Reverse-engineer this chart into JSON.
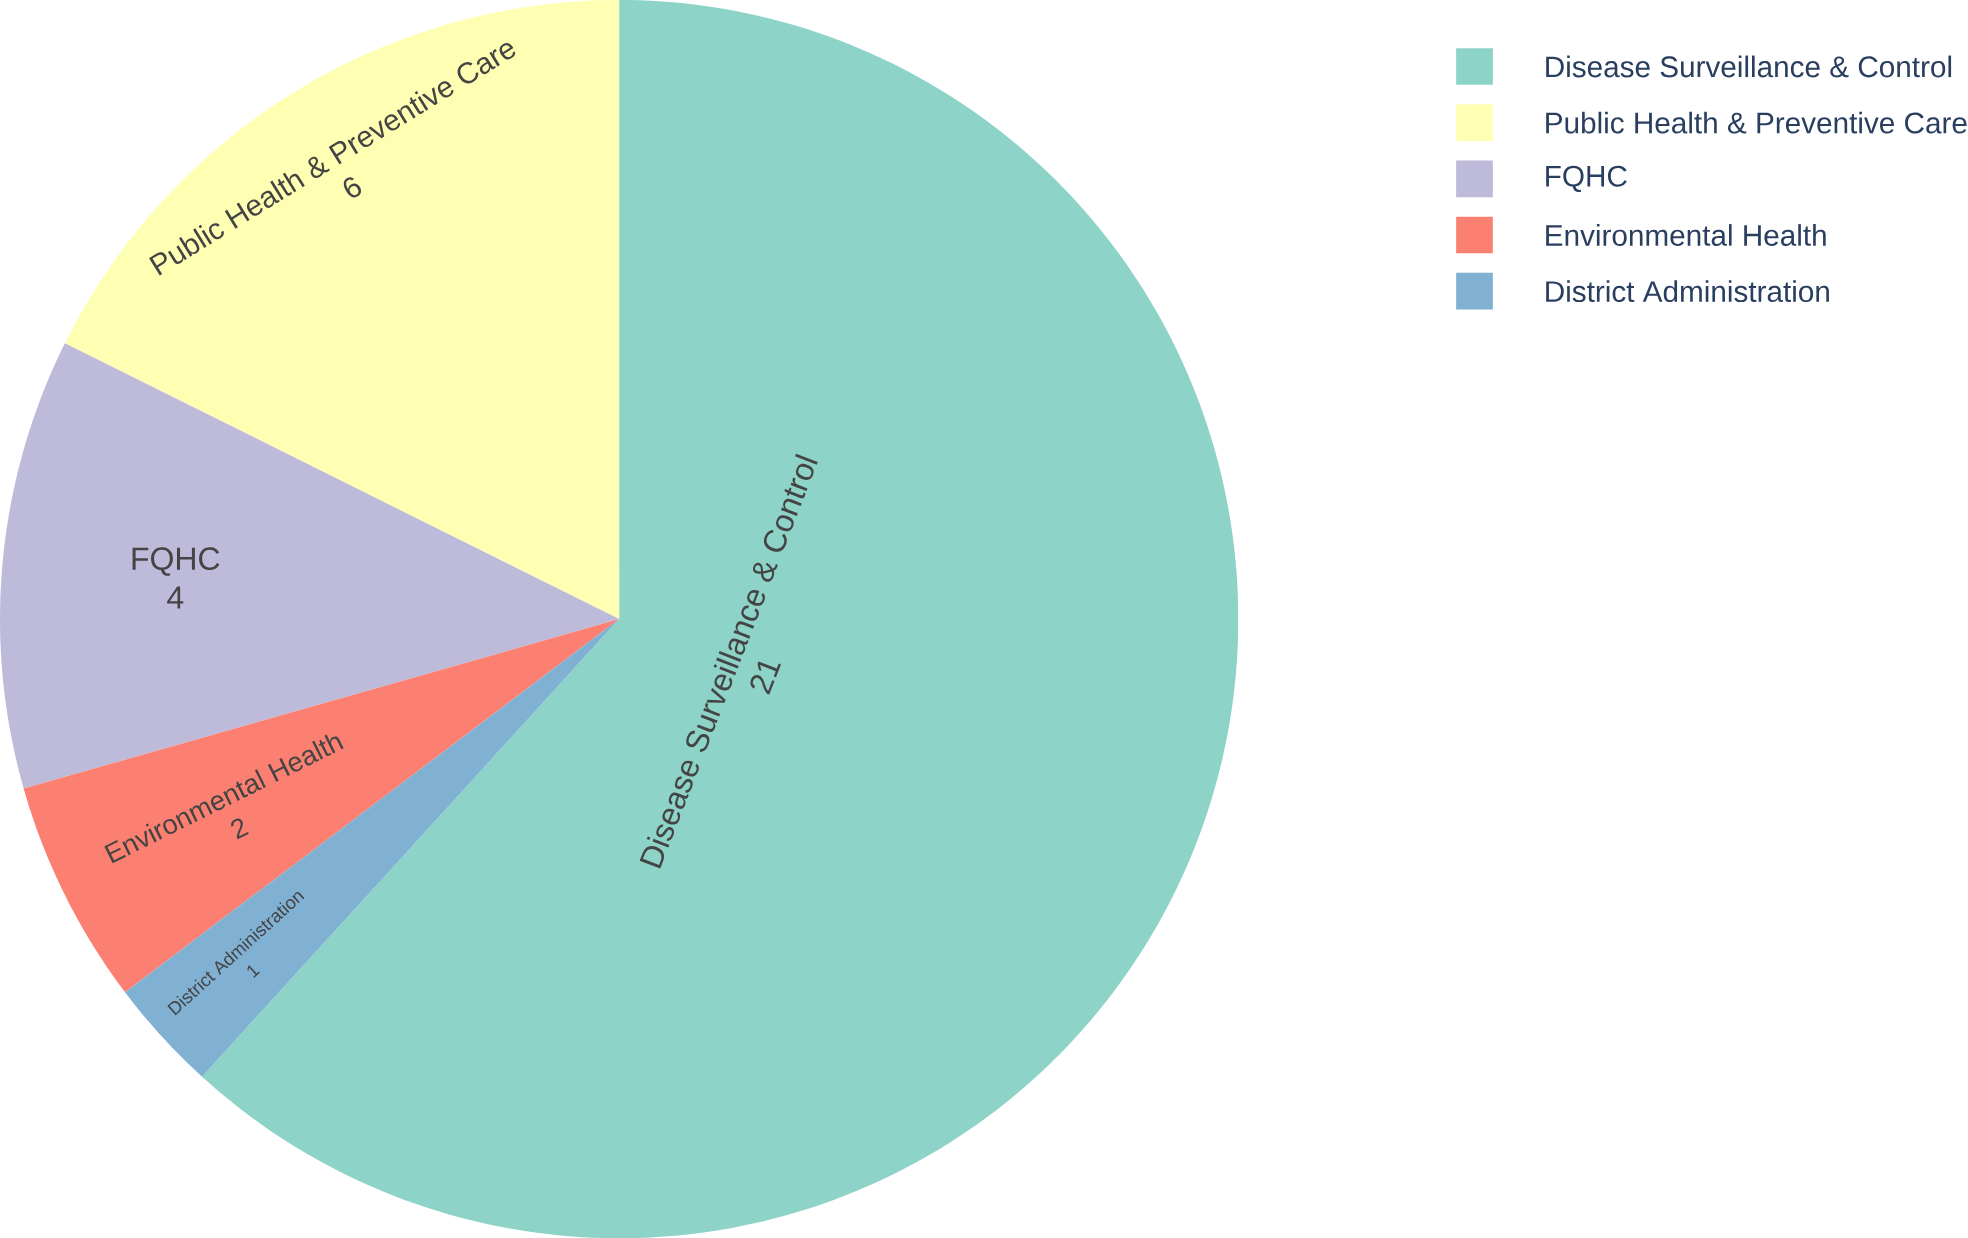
{
  "chart_data": {
    "type": "pie",
    "categories": [
      "Disease Surveillance & Control",
      "Public Health & Preventive Care",
      "FQHC",
      "Environmental Health",
      "District Administration"
    ],
    "values": [
      21,
      6,
      4,
      2,
      1
    ],
    "colors": [
      "#8dd3c7",
      "#ffffb3",
      "#bebada",
      "#fb8072",
      "#80b1d3"
    ],
    "data_labels": true,
    "legend": "top right"
  }
}
